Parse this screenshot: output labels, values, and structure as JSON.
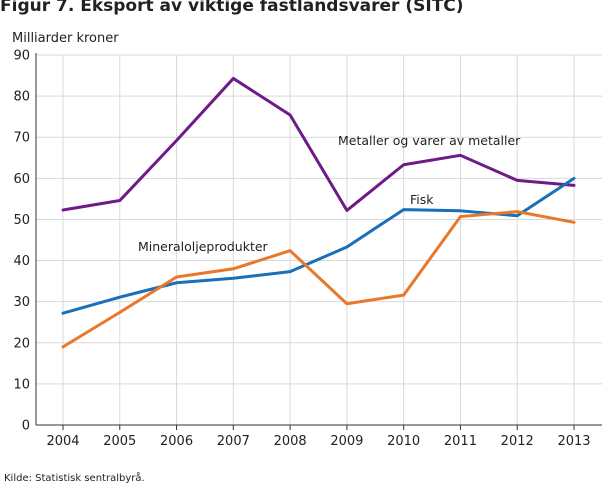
{
  "chart_data": {
    "type": "line",
    "title": "Figur 7. Eksport av viktige fastlandsvarer (SITC)",
    "ylabel": "Milliarder kroner",
    "xlabel": "",
    "categories": [
      "2004",
      "2005",
      "2006",
      "2007",
      "2008",
      "2009",
      "2010",
      "2011",
      "2012",
      "2013"
    ],
    "ylim": [
      0,
      90
    ],
    "yticks": [
      0,
      10,
      20,
      30,
      40,
      50,
      60,
      70,
      80,
      90
    ],
    "grid": true,
    "series": [
      {
        "name": "Metaller og varer av metaller",
        "color": "#6e1a87",
        "values": [
          52.3,
          54.6,
          69.2,
          84.3,
          75.4,
          52.2,
          63.3,
          65.6,
          59.5,
          58.3
        ]
      },
      {
        "name": "Fisk",
        "color": "#1a6fb9",
        "values": [
          27.2,
          31.1,
          34.6,
          35.7,
          37.3,
          43.3,
          52.4,
          52.1,
          50.9,
          60.0
        ]
      },
      {
        "name": "Mineraloljeprodukter",
        "color": "#e8782a",
        "values": [
          19.0,
          27.4,
          36.0,
          38.0,
          42.4,
          29.5,
          31.6,
          50.7,
          51.9,
          49.3
        ]
      }
    ],
    "source": "Kilde: Statistisk sentralbyrå."
  }
}
